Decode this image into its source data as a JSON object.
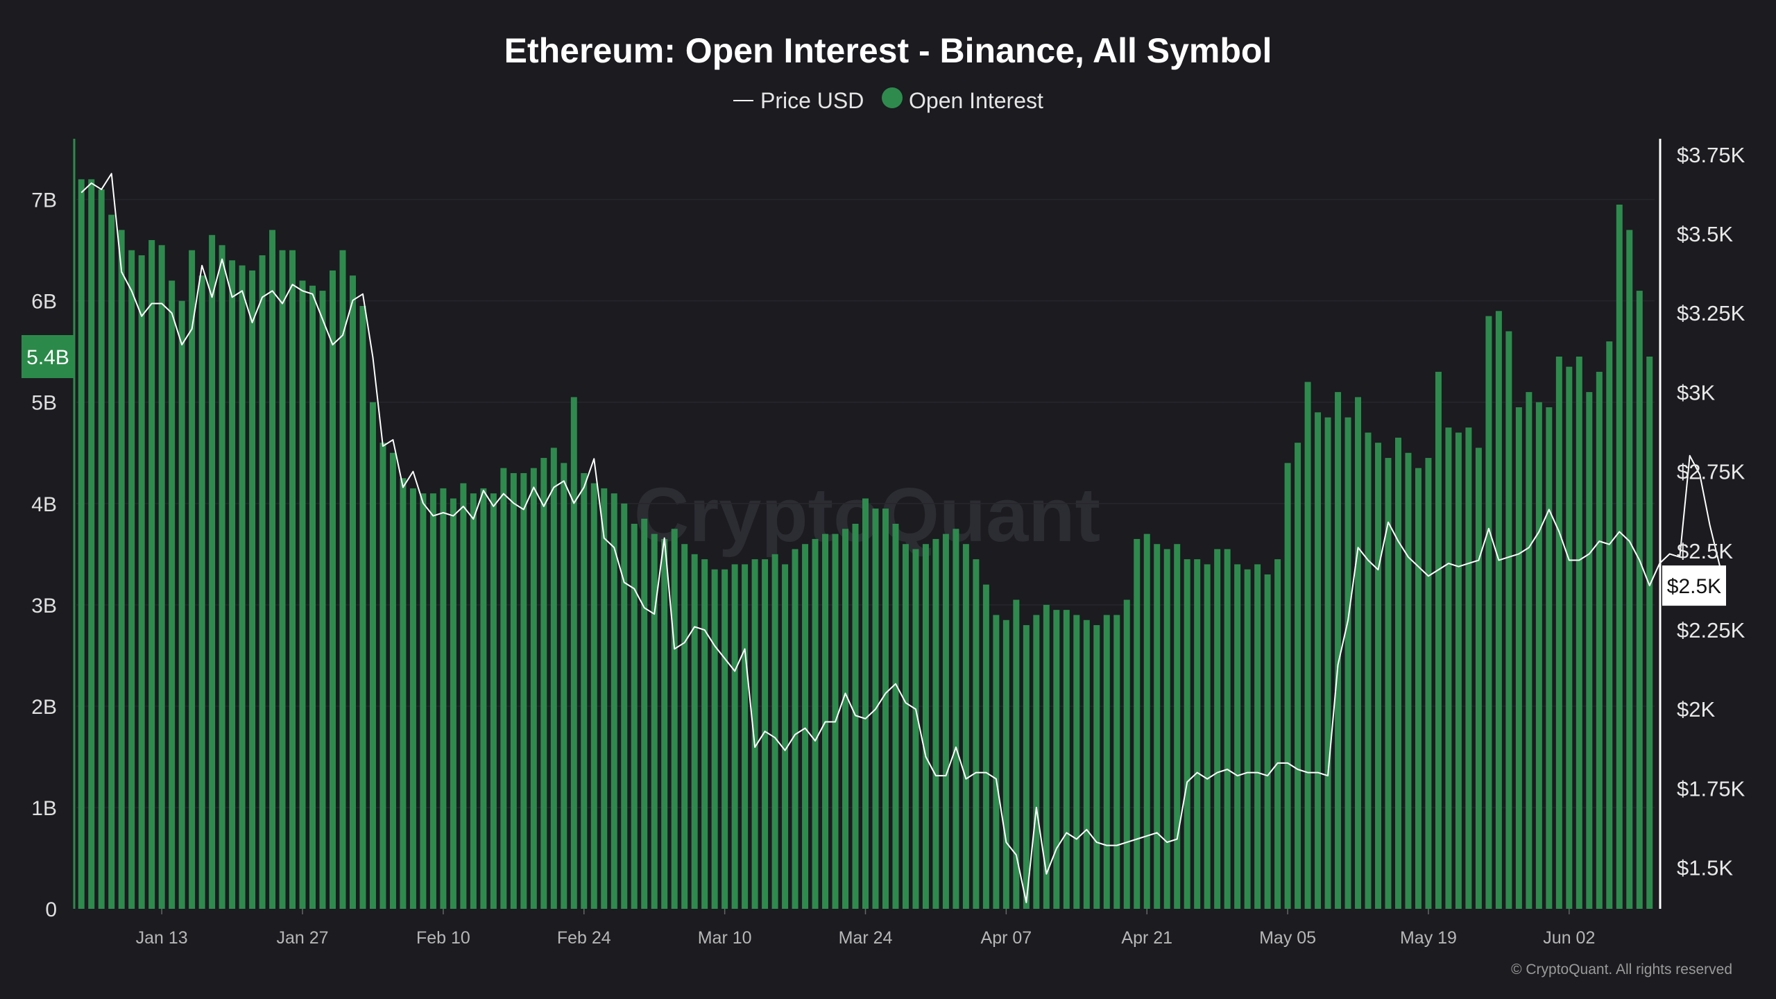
{
  "chart_data": {
    "type": "bar",
    "title": "Ethereum: Open Interest - Binance, All Symbol",
    "legend": [
      "Price USD",
      "Open Interest"
    ],
    "legend_placement": "top-center",
    "colors": {
      "bars": "#2e8b4d",
      "price_line": "#ffffff",
      "background": "#1b1b20",
      "badge_left": "#2b8a4a"
    },
    "watermark": "CryptoQuant",
    "copyright": "© CryptoQuant. All rights reserved",
    "x_tick_labels": [
      "Jan 13",
      "Jan 27",
      "Feb 10",
      "Feb 24",
      "Mar 10",
      "Mar 24",
      "Apr 07",
      "Apr 21",
      "May 05",
      "May 19",
      "Jun 02"
    ],
    "x_tick_index": [
      8,
      22,
      36,
      50,
      64,
      78,
      92,
      106,
      120,
      134,
      148
    ],
    "y_left": {
      "ylim": [
        0,
        7.6
      ],
      "unit": "B",
      "ticks": [
        "0",
        "1B",
        "2B",
        "3B",
        "4B",
        "5B",
        "6B",
        "7B"
      ],
      "tick_values": [
        0,
        1,
        2,
        3,
        4,
        5,
        6,
        7
      ]
    },
    "y_right": {
      "ylim": [
        1370,
        3800
      ],
      "ticks": [
        "$1.5K",
        "$1.75K",
        "$2K",
        "$2.25K",
        "$2.5K",
        "$2.75K",
        "$3K",
        "$3.25K",
        "$3.5K",
        "$3.75K"
      ],
      "tick_values": [
        1500,
        1750,
        2000,
        2250,
        2500,
        2750,
        3000,
        3250,
        3500,
        3750
      ]
    },
    "current_value_badges": {
      "open_interest": "5.4B",
      "price": "$2.5K"
    },
    "series": [
      {
        "name": "Open Interest",
        "axis": "left",
        "unit": "B",
        "values": [
          7.2,
          7.2,
          7.1,
          6.85,
          6.7,
          6.5,
          6.45,
          6.6,
          6.55,
          6.2,
          6.0,
          6.5,
          6.25,
          6.65,
          6.55,
          6.4,
          6.35,
          6.3,
          6.45,
          6.7,
          6.5,
          6.5,
          6.2,
          6.15,
          6.1,
          6.3,
          6.5,
          6.25,
          5.95,
          5.0,
          4.6,
          4.5,
          4.25,
          4.15,
          4.1,
          4.1,
          4.15,
          4.05,
          4.2,
          4.1,
          4.15,
          4.1,
          4.35,
          4.3,
          4.3,
          4.35,
          4.45,
          4.55,
          4.4,
          5.05,
          4.3,
          4.2,
          4.15,
          4.1,
          4.0,
          3.8,
          3.85,
          3.7,
          3.65,
          3.75,
          3.6,
          3.5,
          3.45,
          3.35,
          3.35,
          3.4,
          3.4,
          3.45,
          3.45,
          3.5,
          3.4,
          3.55,
          3.6,
          3.65,
          3.7,
          3.7,
          3.75,
          3.8,
          4.05,
          3.95,
          3.95,
          3.8,
          3.6,
          3.55,
          3.6,
          3.65,
          3.7,
          3.75,
          3.6,
          3.45,
          3.2,
          2.9,
          2.85,
          3.05,
          2.8,
          2.9,
          3.0,
          2.95,
          2.95,
          2.9,
          2.85,
          2.8,
          2.9,
          2.9,
          3.05,
          3.65,
          3.7,
          3.6,
          3.55,
          3.6,
          3.45,
          3.45,
          3.4,
          3.55,
          3.55,
          3.4,
          3.35,
          3.4,
          3.3,
          3.45,
          4.4,
          4.6,
          5.2,
          4.9,
          4.85,
          5.1,
          4.85,
          5.05,
          4.7,
          4.6,
          4.45,
          4.65,
          4.5,
          4.35,
          4.45,
          5.3,
          4.75,
          4.7,
          4.75,
          4.55,
          5.85,
          5.9,
          5.7,
          4.95,
          5.1,
          5.0,
          4.95,
          5.45,
          5.35,
          5.45,
          5.1,
          5.3,
          5.6,
          6.95,
          6.7,
          6.1,
          5.45
        ]
      },
      {
        "name": "Price USD",
        "axis": "right",
        "unit": "USD",
        "values": [
          3630,
          3660,
          3640,
          3690,
          3380,
          3320,
          3240,
          3280,
          3280,
          3250,
          3150,
          3200,
          3400,
          3300,
          3420,
          3300,
          3320,
          3220,
          3300,
          3320,
          3280,
          3340,
          3320,
          3310,
          3230,
          3150,
          3180,
          3290,
          3310,
          3110,
          2830,
          2850,
          2700,
          2750,
          2650,
          2610,
          2620,
          2610,
          2640,
          2600,
          2690,
          2640,
          2680,
          2650,
          2630,
          2700,
          2640,
          2700,
          2720,
          2650,
          2700,
          2790,
          2540,
          2510,
          2400,
          2380,
          2320,
          2300,
          2540,
          2190,
          2210,
          2260,
          2250,
          2200,
          2160,
          2120,
          2190,
          1880,
          1930,
          1910,
          1870,
          1920,
          1940,
          1900,
          1960,
          1960,
          2050,
          1980,
          1970,
          2000,
          2050,
          2080,
          2020,
          2000,
          1850,
          1790,
          1790,
          1880,
          1780,
          1800,
          1800,
          1780,
          1580,
          1540,
          1390,
          1690,
          1480,
          1560,
          1610,
          1590,
          1620,
          1580,
          1570,
          1570,
          1580,
          1590,
          1600,
          1610,
          1580,
          1590,
          1770,
          1800,
          1780,
          1800,
          1810,
          1790,
          1800,
          1800,
          1790,
          1830,
          1830,
          1810,
          1800,
          1800,
          1790,
          2140,
          2280,
          2510,
          2470,
          2440,
          2590,
          2530,
          2480,
          2450,
          2420,
          2440,
          2460,
          2450,
          2460,
          2470,
          2570,
          2470,
          2480,
          2490,
          2510,
          2560,
          2630,
          2560,
          2470,
          2470,
          2490,
          2530,
          2520,
          2560,
          2530,
          2470,
          2390,
          2460,
          2490,
          2480,
          2800,
          2740,
          2580,
          2450
        ]
      }
    ]
  }
}
